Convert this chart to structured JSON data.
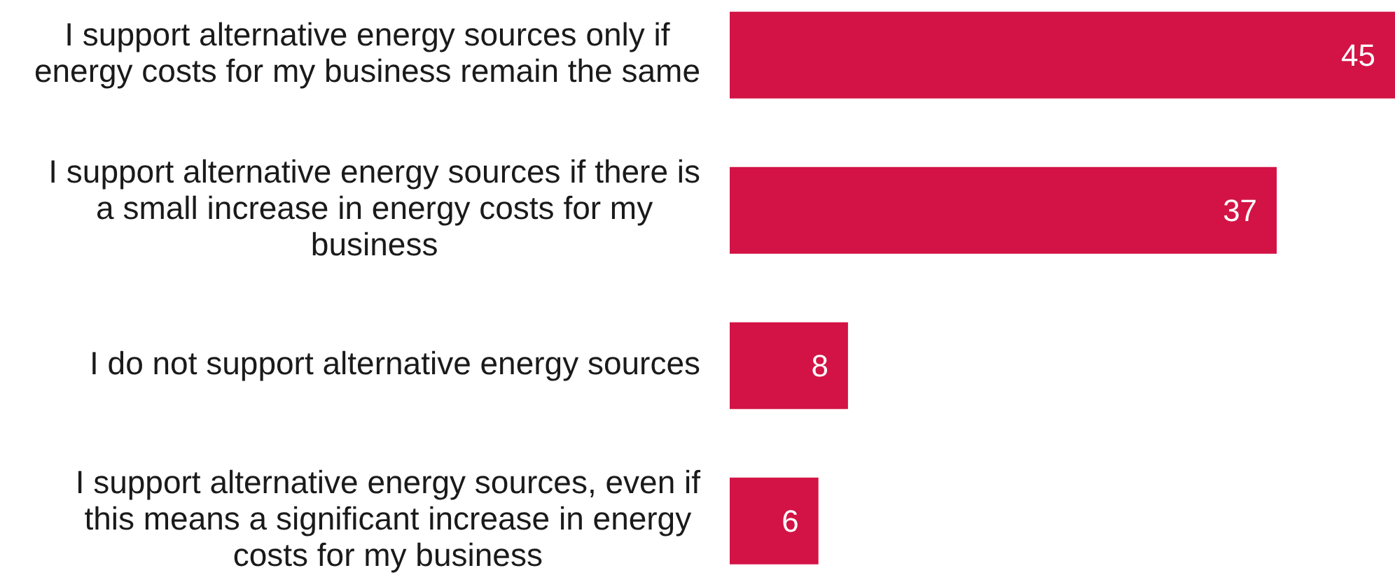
{
  "chart_data": {
    "type": "bar",
    "orientation": "horizontal",
    "categories": [
      "I support alternative energy sources only if energy costs for my business remain the same",
      "I support alternative energy sources if there is a small increase in energy costs for my business",
      "I do not support alternative energy sources",
      "I support alternative energy sources, even if this means a significant increase in energy costs for my business"
    ],
    "values": [
      45,
      37,
      8,
      6
    ],
    "color": "#d31345",
    "data_labels": true
  }
}
